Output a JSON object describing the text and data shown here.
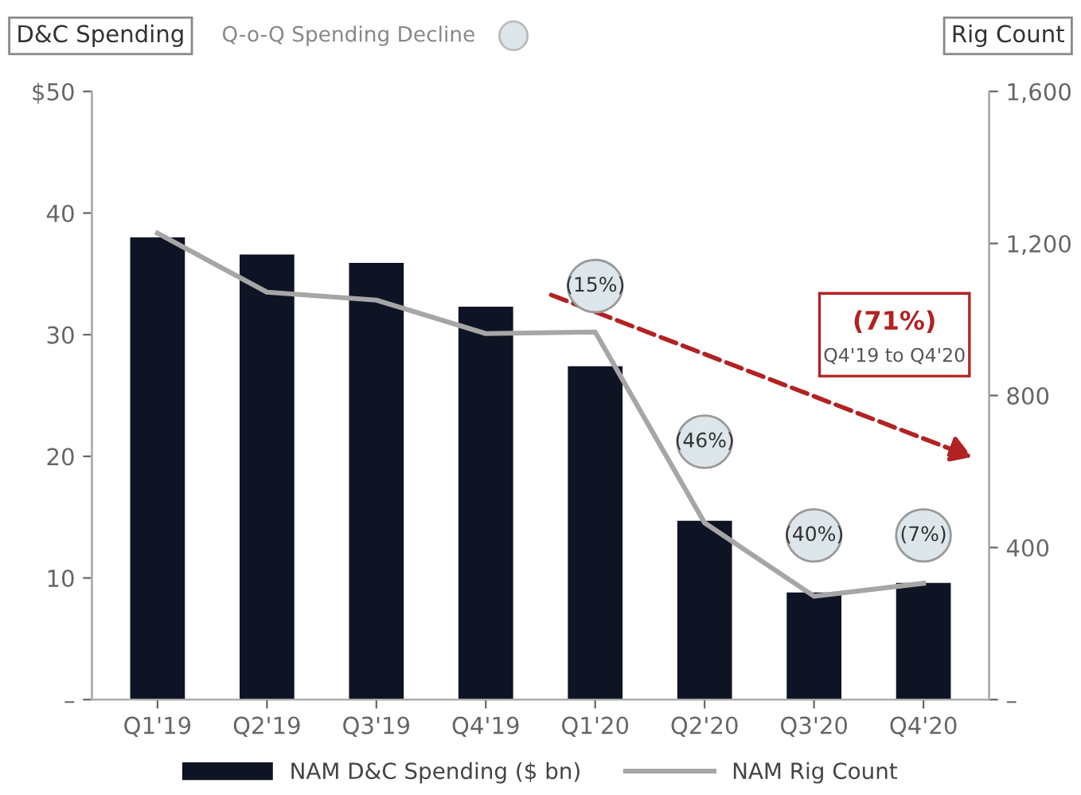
{
  "chart_data": {
    "type": "bar",
    "ylabel": "D&C Spending",
    "y2label": "Rig Count",
    "categories": [
      "Q1'19",
      "Q2'19",
      "Q3'19",
      "Q4'19",
      "Q1'20",
      "Q2'20",
      "Q3'20",
      "Q4'20"
    ],
    "series": [
      {
        "name": "NAM D&C Spending ($ bn)",
        "color": "#0f1424",
        "values": [
          38,
          36.6,
          35.9,
          32.3,
          27.4,
          14.7,
          8.8,
          9.6
        ]
      },
      {
        "name": "NAM Rig Count",
        "type": "line",
        "axis": "y2",
        "color": "#a6a6a6",
        "values": [
          1227,
          1072,
          1051,
          963,
          967,
          465,
          272,
          306
        ]
      }
    ],
    "ylim": [
      0,
      50
    ],
    "yticks": [
      {
        "value": 0,
        "label": "–"
      },
      10,
      20,
      30,
      40,
      {
        "value": 50,
        "label": "$50"
      }
    ],
    "y2lim": [
      0,
      1600
    ],
    "y2ticks": [
      {
        "value": 0,
        "label": "–"
      },
      {
        "value": 400,
        "label": "400"
      },
      {
        "value": 800,
        "label": "800"
      },
      {
        "value": 1200,
        "label": "1,200"
      },
      {
        "value": 1600,
        "label": "1,600"
      }
    ],
    "annotations": [
      "Q-o-Q Spending Decline",
      "(15%)",
      "(46%)",
      "(40%)",
      "(7%)",
      "(71%)",
      "Q4'19 to Q4'20"
    ],
    "grid": false,
    "legend": "bottom",
    "marker": "none",
    "line_style": "solid"
  }
}
